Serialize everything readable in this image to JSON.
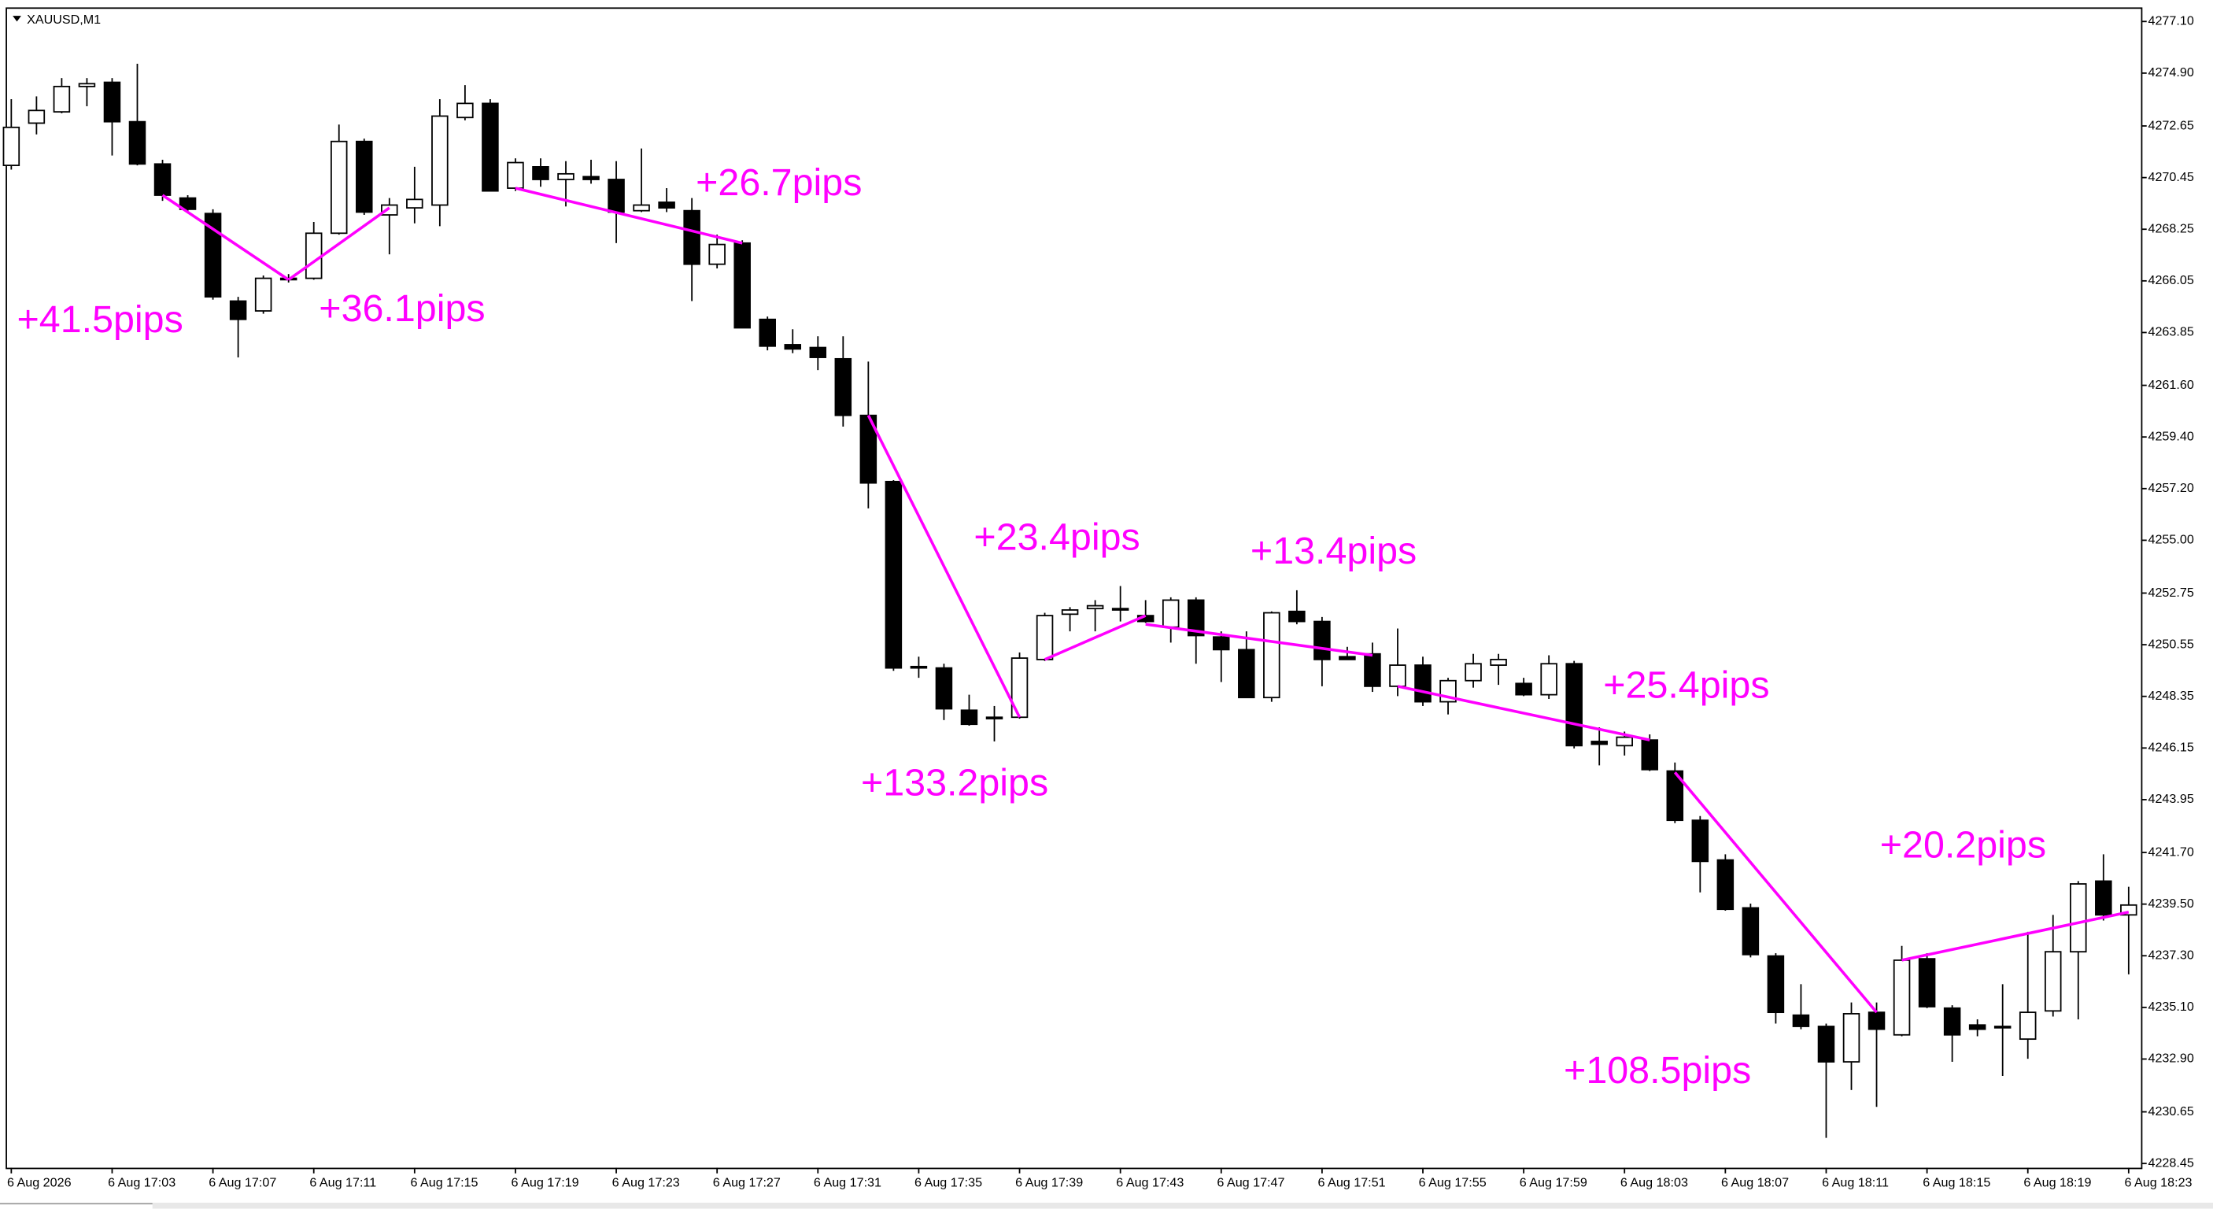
{
  "chart_data": {
    "type": "candlestick",
    "title": "XAUUSD,M1",
    "categories": [
      "6 Aug 2026",
      null,
      null,
      null,
      "6 Aug 17:03",
      null,
      null,
      null,
      "6 Aug 17:07",
      null,
      null,
      null,
      "6 Aug 17:11",
      null,
      null,
      null,
      "6 Aug 17:15",
      null,
      null,
      null,
      "6 Aug 17:19",
      null,
      null,
      null,
      "6 Aug 17:23",
      null,
      null,
      null,
      "6 Aug 17:27",
      null,
      null,
      null,
      "6 Aug 17:31",
      null,
      null,
      null,
      "6 Aug 17:35",
      null,
      null,
      null,
      "6 Aug 17:39",
      null,
      null,
      null,
      "6 Aug 17:43",
      null,
      null,
      null,
      "6 Aug 17:47",
      null,
      null,
      null,
      "6 Aug 17:51",
      null,
      null,
      null,
      "6 Aug 17:55",
      null,
      null,
      null,
      "6 Aug 17:59",
      null,
      null,
      null,
      "6 Aug 18:03",
      null,
      null,
      null,
      "6 Aug 18:07",
      null,
      null,
      null,
      "6 Aug 18:11",
      null,
      null,
      null,
      "6 Aug 18:15",
      null,
      null,
      null,
      "6 Aug 18:19",
      null,
      null,
      null,
      "6 Aug 18:23"
    ],
    "open": [
      4270.97,
      4272.77,
      4273.25,
      4274.33,
      4274.51,
      4272.83,
      4271.03,
      4269.58,
      4268.92,
      4265.19,
      4264.77,
      4266.16,
      4266.16,
      4268.08,
      4271.99,
      4268.86,
      4269.16,
      4269.28,
      4273.01,
      4273.61,
      4270.0,
      4270.91,
      4270.37,
      4270.49,
      4270.37,
      4269.04,
      4269.4,
      4269.04,
      4266.76,
      4267.66,
      4264.41,
      4263.33,
      4263.21,
      4262.73,
      4260.32,
      4257.5,
      4249.62,
      4249.56,
      4247.76,
      4247.4,
      4247.46,
      4249.92,
      4251.85,
      4252.09,
      4252.09,
      4251.79,
      4251.3,
      4252.45,
      4250.88,
      4250.34,
      4248.3,
      4251.97,
      4251.54,
      4250.04,
      4250.16,
      4248.78,
      4249.68,
      4248.12,
      4249.02,
      4249.68,
      4248.9,
      4248.42,
      4249.74,
      4246.43,
      4246.25,
      4246.49,
      4245.17,
      4243.07,
      4241.38,
      4239.34,
      4237.29,
      4234.77,
      4234.29,
      4232.78,
      4234.89,
      4233.93,
      4237.17,
      4235.07,
      4234.35,
      4234.29,
      4233.75,
      4234.95,
      4237.47,
      4240.48,
      4239.04
    ],
    "high": [
      4273.79,
      4273.91,
      4274.69,
      4274.69,
      4274.69,
      4275.3,
      4271.21,
      4269.7,
      4269.1,
      4265.37,
      4266.28,
      4266.34,
      4268.56,
      4272.71,
      4272.11,
      4269.58,
      4270.91,
      4273.79,
      4274.39,
      4273.79,
      4271.27,
      4271.27,
      4271.15,
      4271.21,
      4271.15,
      4271.69,
      4270.0,
      4269.58,
      4268.02,
      4267.78,
      4264.53,
      4263.99,
      4263.69,
      4263.69,
      4262.61,
      4257.56,
      4250.04,
      4249.74,
      4248.42,
      4247.94,
      4250.22,
      4251.91,
      4252.15,
      4252.45,
      4253.05,
      4252.45,
      4252.57,
      4252.57,
      4251.12,
      4251.12,
      4251.97,
      4252.87,
      4251.73,
      4250.46,
      4250.64,
      4251.24,
      4250.04,
      4249.14,
      4250.16,
      4250.16,
      4249.14,
      4250.1,
      4249.86,
      4247.03,
      4246.85,
      4246.73,
      4245.53,
      4243.25,
      4241.62,
      4239.52,
      4237.41,
      4236.09,
      4234.41,
      4235.31,
      4235.31,
      4237.72,
      4237.41,
      4235.19,
      4234.59,
      4236.09,
      4238.32,
      4239.04,
      4240.48,
      4241.62,
      4240.24
    ],
    "low": [
      4270.79,
      4272.29,
      4273.19,
      4273.49,
      4271.39,
      4270.97,
      4269.46,
      4268.98,
      4265.25,
      4262.79,
      4264.65,
      4265.98,
      4266.1,
      4268.02,
      4268.86,
      4267.18,
      4268.5,
      4268.38,
      4272.89,
      4269.88,
      4269.88,
      4270.06,
      4269.22,
      4270.19,
      4267.66,
      4268.98,
      4268.98,
      4265.19,
      4266.58,
      4264.05,
      4263.09,
      4262.97,
      4262.25,
      4259.84,
      4256.36,
      4249.44,
      4249.14,
      4247.34,
      4247.1,
      4246.43,
      4247.4,
      4249.86,
      4251.12,
      4251.12,
      4251.54,
      4251.48,
      4250.64,
      4249.74,
      4248.96,
      4248.3,
      4248.12,
      4251.42,
      4248.78,
      4249.92,
      4248.54,
      4248.36,
      4247.94,
      4247.58,
      4248.72,
      4248.84,
      4248.36,
      4248.24,
      4246.13,
      4245.41,
      4245.83,
      4245.17,
      4242.95,
      4240.0,
      4239.22,
      4237.23,
      4234.41,
      4234.17,
      4229.54,
      4231.58,
      4230.86,
      4233.87,
      4235.07,
      4232.78,
      4233.87,
      4232.18,
      4232.91,
      4234.71,
      4234.59,
      4238.8,
      4236.51
    ],
    "close": [
      4272.59,
      4273.31,
      4274.33,
      4274.45,
      4272.83,
      4271.03,
      4269.7,
      4269.1,
      4265.37,
      4264.41,
      4266.16,
      4266.16,
      4268.08,
      4271.99,
      4268.98,
      4269.28,
      4269.52,
      4273.07,
      4273.61,
      4269.88,
      4271.09,
      4270.37,
      4270.61,
      4270.37,
      4268.98,
      4269.28,
      4269.16,
      4266.76,
      4267.6,
      4264.05,
      4263.27,
      4263.15,
      4262.79,
      4260.32,
      4257.44,
      4249.56,
      4249.56,
      4247.82,
      4247.16,
      4247.46,
      4249.98,
      4251.79,
      4252.03,
      4252.21,
      4252.03,
      4251.54,
      4252.45,
      4250.94,
      4250.34,
      4248.3,
      4251.91,
      4251.54,
      4249.92,
      4249.92,
      4248.78,
      4249.68,
      4248.12,
      4249.02,
      4249.74,
      4249.92,
      4248.42,
      4249.74,
      4246.25,
      4246.31,
      4246.61,
      4245.23,
      4243.07,
      4241.32,
      4239.28,
      4237.35,
      4234.89,
      4234.29,
      4232.78,
      4234.83,
      4234.17,
      4237.11,
      4235.13,
      4233.93,
      4234.17,
      4234.29,
      4234.89,
      4237.47,
      4240.36,
      4239.04,
      4239.46
    ],
    "up_color": "#ffffff",
    "down_color": "#000000",
    "ylim": [
      4228.27,
      4277.7
    ],
    "yticks": [
      {
        "value": 4277.1,
        "label": "4277.10"
      },
      {
        "value": 4274.9,
        "label": "4274.90"
      },
      {
        "value": 4272.65,
        "label": "4272.65"
      },
      {
        "value": 4270.45,
        "label": "4270.45"
      },
      {
        "value": 4268.25,
        "label": "4268.25"
      },
      {
        "value": 4266.05,
        "label": "4266.05"
      },
      {
        "value": 4263.85,
        "label": "4263.85"
      },
      {
        "value": 4261.6,
        "label": "4261.60"
      },
      {
        "value": 4259.4,
        "label": "4259.40"
      },
      {
        "value": 4257.2,
        "label": "4257.20"
      },
      {
        "value": 4255,
        "label": "4255.00"
      },
      {
        "value": 4252.75,
        "label": "4252.75"
      },
      {
        "value": 4250.55,
        "label": "4250.55"
      },
      {
        "value": 4248.35,
        "label": "4248.35"
      },
      {
        "value": 4246.15,
        "label": "4246.15"
      },
      {
        "value": 4243.95,
        "label": "4243.95"
      },
      {
        "value": 4241.7,
        "label": "4241.70"
      },
      {
        "value": 4239.5,
        "label": "4239.50"
      },
      {
        "value": 4237.3,
        "label": "4237.30"
      },
      {
        "value": 4235.1,
        "label": "4235.10"
      },
      {
        "value": 4232.9,
        "label": "4232.90"
      },
      {
        "value": 4230.65,
        "label": "4230.65"
      },
      {
        "value": 4228.45,
        "label": "4228.45"
      }
    ],
    "trendline_color": "#ff00ff",
    "trendlines": [
      {
        "label": "+41.5pips",
        "start_index": 6,
        "start_price": 4269.7,
        "end_index": 11,
        "end_price": 4266.1
      },
      {
        "label": "+36.1pips",
        "start_index": 11,
        "start_price": 4266.1,
        "end_index": 15,
        "end_price": 4269.16
      },
      {
        "label": "+26.7pips",
        "start_index": 20,
        "start_price": 4270.0,
        "end_index": 29,
        "end_price": 4267.66
      },
      {
        "label": "+133.2pips",
        "start_index": 34,
        "start_price": 4260.32,
        "end_index": 40,
        "end_price": 4247.46
      },
      {
        "label": "+23.4pips",
        "start_index": 41,
        "start_price": 4249.92,
        "end_index": 45,
        "end_price": 4251.79
      },
      {
        "label": "+13.4pips",
        "start_index": 45,
        "start_price": 4251.42,
        "end_index": 54,
        "end_price": 4250.1
      },
      {
        "label": "+25.4pips",
        "start_index": 55,
        "start_price": 4248.78,
        "end_index": 65,
        "end_price": 4246.49
      },
      {
        "label": "+108.5pips",
        "start_index": 66,
        "start_price": 4245.11,
        "end_index": 74,
        "end_price": 4234.89
      },
      {
        "label": "+20.2pips",
        "start_index": 75,
        "start_price": 4237.11,
        "end_index": 84,
        "end_price": 4239.16
      }
    ]
  }
}
